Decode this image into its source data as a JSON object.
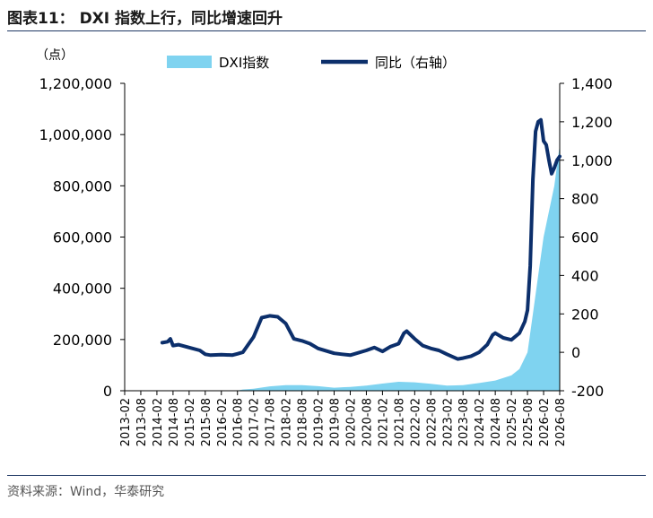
{
  "figure": {
    "title": "图表11：  DXI 指数上行，同比增速回升",
    "source": "资料来源：Wind，华泰研究"
  },
  "chart_data": {
    "type": "area+line",
    "left_unit": "（点）",
    "legend": [
      {
        "name": "DXI指数",
        "kind": "area",
        "color": "#7fd3f0"
      },
      {
        "name": "同比（右轴）",
        "kind": "line",
        "color": "#0c2f6b"
      }
    ],
    "legend_placement": "top",
    "grid": false,
    "y_left": {
      "min": 0,
      "max": 1200000,
      "ticks": [
        "0",
        "200,000",
        "400,000",
        "600,000",
        "800,000",
        "1,000,000",
        "1,200,000"
      ]
    },
    "y_right": {
      "min": -200,
      "max": 1400,
      "ticks": [
        "-200",
        "0",
        "200",
        "400",
        "600",
        "800",
        "1,000",
        "1,200",
        "1,400"
      ]
    },
    "x_range": [
      "2013-02",
      "2026-08"
    ],
    "x_ticks": [
      "2013-02",
      "2013-08",
      "2014-02",
      "2014-08",
      "2015-02",
      "2015-08",
      "2016-02",
      "2016-08",
      "2017-02",
      "2017-08",
      "2018-02",
      "2018-08",
      "2019-02",
      "2019-08",
      "2020-02",
      "2020-08",
      "2021-02",
      "2021-08",
      "2022-02",
      "2022-08",
      "2023-02",
      "2023-08",
      "2024-02",
      "2024-08",
      "2025-02",
      "2025-08",
      "2026-02",
      "2026-08"
    ],
    "series": [
      {
        "name": "DXI指数",
        "type": "area",
        "axis": "left",
        "points": [
          [
            "2013-02",
            0
          ],
          [
            "2014-02",
            0
          ],
          [
            "2015-02",
            0
          ],
          [
            "2016-02",
            0
          ],
          [
            "2016-08",
            1000
          ],
          [
            "2016-10",
            5000
          ],
          [
            "2017-02",
            8000
          ],
          [
            "2017-08",
            17000
          ],
          [
            "2018-02",
            22000
          ],
          [
            "2018-08",
            22000
          ],
          [
            "2019-02",
            18000
          ],
          [
            "2019-08",
            12000
          ],
          [
            "2020-02",
            15000
          ],
          [
            "2020-08",
            20000
          ],
          [
            "2021-02",
            28000
          ],
          [
            "2021-08",
            35000
          ],
          [
            "2022-02",
            33000
          ],
          [
            "2022-08",
            27000
          ],
          [
            "2023-02",
            20000
          ],
          [
            "2023-08",
            22000
          ],
          [
            "2024-02",
            30000
          ],
          [
            "2024-08",
            40000
          ],
          [
            "2025-02",
            60000
          ],
          [
            "2025-05",
            85000
          ],
          [
            "2025-08",
            150000
          ],
          [
            "2025-10",
            300000
          ],
          [
            "2025-12",
            450000
          ],
          [
            "2026-02",
            600000
          ],
          [
            "2026-04",
            700000
          ],
          [
            "2026-06",
            800000
          ],
          [
            "2026-07",
            880000
          ],
          [
            "2026-08",
            960000
          ]
        ]
      },
      {
        "name": "同比（右轴）",
        "type": "line",
        "axis": "right",
        "points": [
          [
            "2014-04",
            50
          ],
          [
            "2014-06",
            55
          ],
          [
            "2014-07",
            70
          ],
          [
            "2014-08",
            35
          ],
          [
            "2014-10",
            40
          ],
          [
            "2015-02",
            25
          ],
          [
            "2015-06",
            10
          ],
          [
            "2015-08",
            -10
          ],
          [
            "2015-10",
            -15
          ],
          [
            "2016-02",
            -12
          ],
          [
            "2016-06",
            -15
          ],
          [
            "2016-08",
            -8
          ],
          [
            "2016-10",
            0
          ],
          [
            "2017-02",
            80
          ],
          [
            "2017-05",
            180
          ],
          [
            "2017-08",
            190
          ],
          [
            "2017-11",
            185
          ],
          [
            "2018-02",
            150
          ],
          [
            "2018-05",
            70
          ],
          [
            "2018-08",
            60
          ],
          [
            "2018-11",
            45
          ],
          [
            "2019-02",
            20
          ],
          [
            "2019-08",
            -5
          ],
          [
            "2019-11",
            -10
          ],
          [
            "2020-02",
            -15
          ],
          [
            "2020-08",
            10
          ],
          [
            "2020-11",
            25
          ],
          [
            "2021-02",
            5
          ],
          [
            "2021-05",
            30
          ],
          [
            "2021-08",
            45
          ],
          [
            "2021-10",
            100
          ],
          [
            "2021-11",
            110
          ],
          [
            "2022-02",
            70
          ],
          [
            "2022-05",
            35
          ],
          [
            "2022-08",
            20
          ],
          [
            "2022-11",
            10
          ],
          [
            "2023-02",
            -10
          ],
          [
            "2023-06",
            -35
          ],
          [
            "2023-08",
            -30
          ],
          [
            "2023-11",
            -20
          ],
          [
            "2024-02",
            0
          ],
          [
            "2024-05",
            40
          ],
          [
            "2024-07",
            90
          ],
          [
            "2024-08",
            100
          ],
          [
            "2024-11",
            75
          ],
          [
            "2025-02",
            65
          ],
          [
            "2025-05",
            100
          ],
          [
            "2025-06",
            130
          ],
          [
            "2025-07",
            160
          ],
          [
            "2025-08",
            220
          ],
          [
            "2025-09",
            450
          ],
          [
            "2025-10",
            900
          ],
          [
            "2025-11",
            1150
          ],
          [
            "2025-12",
            1200
          ],
          [
            "2026-01",
            1210
          ],
          [
            "2026-02",
            1100
          ],
          [
            "2026-03",
            1080
          ],
          [
            "2026-04",
            1000
          ],
          [
            "2026-05",
            930
          ],
          [
            "2026-06",
            960
          ],
          [
            "2026-07",
            1000
          ],
          [
            "2026-08",
            1020
          ]
        ]
      }
    ]
  }
}
